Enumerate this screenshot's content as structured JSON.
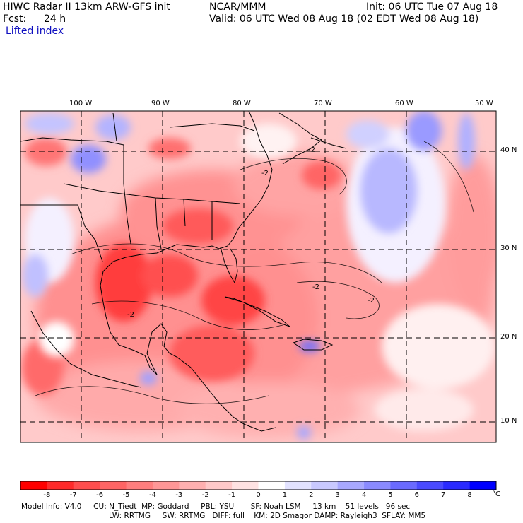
{
  "header": {
    "title": "HIWC Radar II 13km ARW-GFS init",
    "center": "NCAR/MMM",
    "init": "Init: 06 UTC Tue 07 Aug 18",
    "fcst_label": "Fcst:",
    "fcst_value": "24 h",
    "valid": "Valid: 06 UTC Wed 08 Aug 18 (02 EDT Wed 08 Aug 18)",
    "field": "Lifted index"
  },
  "map": {
    "lon_labels": [
      "100 W",
      "90 W",
      "80 W",
      "70 W",
      "60 W",
      "50 W"
    ],
    "lat_labels": [
      "40 N",
      "30 N",
      "20 N",
      "10 N"
    ],
    "contour_labels": [
      "-2",
      "-2",
      "-2",
      "-2",
      "-2"
    ]
  },
  "colorbar": {
    "ticks": [
      "-8",
      "-7",
      "-6",
      "-5",
      "-4",
      "-3",
      "-2",
      "-1",
      "0",
      "1",
      "2",
      "3",
      "4",
      "5",
      "6",
      "7",
      "8"
    ],
    "unit": "°C",
    "colors": [
      "#ff0000",
      "#ff2a2a",
      "#ff4d4d",
      "#ff6464",
      "#ff7e7e",
      "#ff9696",
      "#ffafaf",
      "#ffc8c8",
      "#ffe2e2",
      "#ffffff",
      "#e2e2ff",
      "#c8c8ff",
      "#a8a8ff",
      "#8a8aff",
      "#6a6aff",
      "#4a4aff",
      "#2a2aff",
      "#0000ff"
    ]
  },
  "model_info": {
    "line1": "Model Info: V4.0     CU: N_Tiedt  MP: Goddard     PBL: YSU       SF: Noah LSM     13 km    51 levels   96 sec",
    "line2": "LW: RRTMG     SW: RRTMG   DIFF: full    KM: 2D Smagor DAMP: Rayleigh3  SFLAY: MM5"
  }
}
